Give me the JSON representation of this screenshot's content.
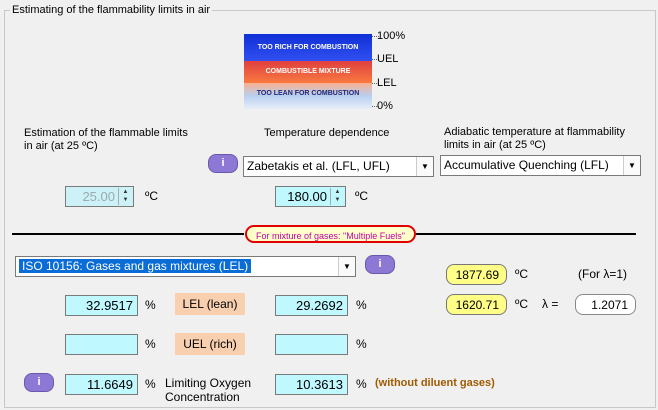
{
  "group_title": "Estimating of the flammability limits in air",
  "diagram": {
    "bands": [
      "TOO RICH FOR COMBUSTION",
      "COMBUSTIBLE MIXTURE",
      "TOO LEAN FOR COMBUSTION"
    ],
    "scale": [
      "100%",
      "UEL",
      "LEL",
      "0%"
    ]
  },
  "headers": {
    "estimation": "Estimation of the flammable limits in air (at 25 ºC)",
    "temp_dep": "Temperature dependence",
    "adiabatic": "Adiabatic temperature at flammability limits in air (at 25 ºC)"
  },
  "info_label": "i",
  "temp_dep_select": "Zabetakis et al. (LFL, UFL)",
  "adiabatic_select": "Accumulative Quenching (LFL)",
  "temp1": {
    "value": "25.00",
    "unit": "ºC"
  },
  "temp2": {
    "value": "180.00",
    "unit": "ºC"
  },
  "mixture_note": "For mixture of gases: \"Multiple Fuels\"",
  "standard_select": "ISO 10156: Gases and gas mixtures (LEL)",
  "adiabatic_results": {
    "t1": "1877.69",
    "t2": "1620.71",
    "unit": "ºC",
    "lambda1_note": "(For λ=1)",
    "lambda_label": "λ =",
    "lambda_value": "1.2071"
  },
  "rows": {
    "lel": {
      "left": "32.9517",
      "label": "LEL (lean)",
      "right": "29.2692",
      "unit": "%"
    },
    "uel": {
      "left": "",
      "label": "UEL (rich)",
      "right": "",
      "unit": "%"
    },
    "loc": {
      "left": "11.6649",
      "label": "Limiting Oxygen Concentration",
      "right": "10.3613",
      "unit": "%",
      "note": "(without diluent gases)"
    }
  },
  "colors": {
    "field_bg": "#c0f8ff",
    "tag_bg": "#f8d0b0",
    "yellow_bg": "#ffff88",
    "info_btn": "#8e78d6",
    "note_text": "#a05a00"
  }
}
